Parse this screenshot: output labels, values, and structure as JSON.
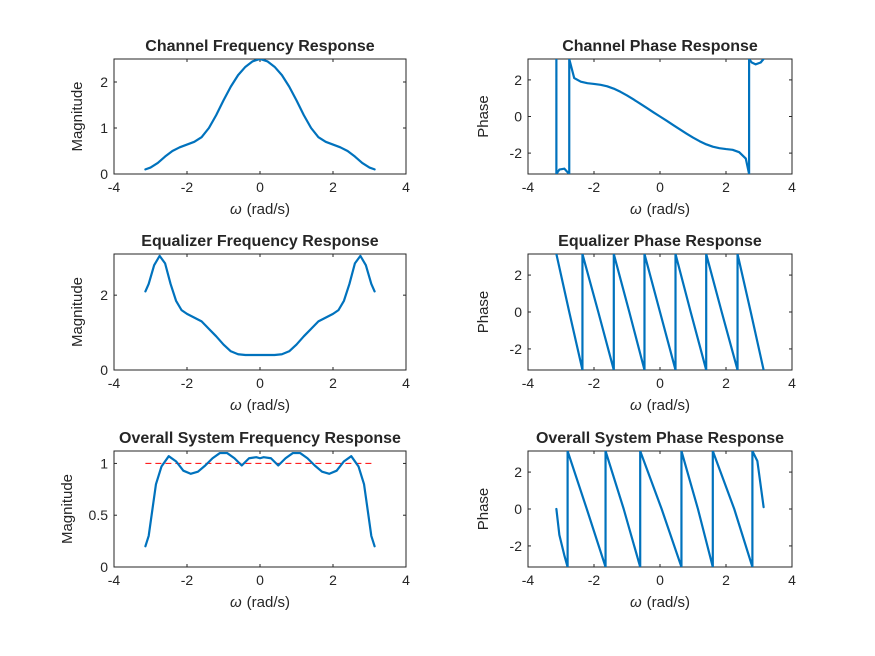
{
  "figure": {
    "background": "#ffffff",
    "line_color": "#0072BD",
    "reference_color": "#FF0000"
  },
  "chart_data": [
    {
      "type": "line",
      "title": "Channel Frequency Response",
      "xlabel": "(rad/s)",
      "xlabel_symbol": "ω",
      "ylabel": "Magnitude",
      "xlim": [
        -4,
        4
      ],
      "ylim": [
        0,
        2.5
      ],
      "xticks": [
        "-4",
        "-2",
        "0",
        "2",
        "4"
      ],
      "yticks": [
        "0",
        "1",
        "2"
      ],
      "ytick_values": [
        0,
        1,
        2
      ],
      "series": [
        {
          "values": [
            [
              -3.14,
              0.1
            ],
            [
              -3.0,
              0.14
            ],
            [
              -2.8,
              0.24
            ],
            [
              -2.6,
              0.38
            ],
            [
              -2.4,
              0.5
            ],
            [
              -2.2,
              0.58
            ],
            [
              -2.0,
              0.64
            ],
            [
              -1.8,
              0.7
            ],
            [
              -1.6,
              0.8
            ],
            [
              -1.4,
              1.0
            ],
            [
              -1.2,
              1.28
            ],
            [
              -1.0,
              1.6
            ],
            [
              -0.8,
              1.9
            ],
            [
              -0.6,
              2.15
            ],
            [
              -0.4,
              2.33
            ],
            [
              -0.2,
              2.45
            ],
            [
              0.0,
              2.5
            ],
            [
              0.2,
              2.45
            ],
            [
              0.4,
              2.33
            ],
            [
              0.6,
              2.15
            ],
            [
              0.8,
              1.9
            ],
            [
              1.0,
              1.6
            ],
            [
              1.2,
              1.28
            ],
            [
              1.4,
              1.0
            ],
            [
              1.6,
              0.8
            ],
            [
              1.8,
              0.7
            ],
            [
              2.0,
              0.64
            ],
            [
              2.2,
              0.58
            ],
            [
              2.4,
              0.5
            ],
            [
              2.6,
              0.38
            ],
            [
              2.8,
              0.24
            ],
            [
              3.0,
              0.14
            ],
            [
              3.14,
              0.1
            ]
          ]
        }
      ]
    },
    {
      "type": "line",
      "title": "Channel Phase Response",
      "xlabel": "(rad/s)",
      "xlabel_symbol": "ω",
      "ylabel": "Phase",
      "xlim": [
        -4,
        4
      ],
      "ylim": [
        -3.14159,
        3.14159
      ],
      "xticks": [
        "-4",
        "-2",
        "0",
        "2",
        "4"
      ],
      "yticks": [
        "-2",
        "0",
        "2"
      ],
      "ytick_values": [
        -2,
        0,
        2
      ],
      "series": [
        {
          "values": [
            [
              -3.14,
              3.14
            ],
            [
              -3.14,
              -3.14
            ],
            [
              -3.05,
              -2.9
            ],
            [
              -2.9,
              -2.85
            ],
            [
              -2.75,
              -3.14
            ],
            [
              -2.75,
              3.14
            ],
            [
              -2.6,
              2.1
            ],
            [
              -2.4,
              1.9
            ],
            [
              -2.2,
              1.82
            ],
            [
              -2.0,
              1.78
            ],
            [
              -1.8,
              1.73
            ],
            [
              -1.6,
              1.65
            ],
            [
              -1.4,
              1.52
            ],
            [
              -1.2,
              1.35
            ],
            [
              -1.0,
              1.15
            ],
            [
              -0.8,
              0.93
            ],
            [
              -0.6,
              0.7
            ],
            [
              -0.4,
              0.47
            ],
            [
              -0.2,
              0.23
            ],
            [
              0.0,
              0.0
            ],
            [
              0.2,
              -0.23
            ],
            [
              0.4,
              -0.47
            ],
            [
              0.6,
              -0.7
            ],
            [
              0.8,
              -0.93
            ],
            [
              1.0,
              -1.15
            ],
            [
              1.2,
              -1.35
            ],
            [
              1.4,
              -1.52
            ],
            [
              1.6,
              -1.65
            ],
            [
              1.8,
              -1.73
            ],
            [
              2.0,
              -1.78
            ],
            [
              2.2,
              -1.82
            ],
            [
              2.4,
              -1.95
            ],
            [
              2.6,
              -2.3
            ],
            [
              2.7,
              -3.14
            ],
            [
              2.7,
              3.14
            ],
            [
              2.78,
              2.95
            ],
            [
              2.9,
              2.85
            ],
            [
              3.05,
              2.95
            ],
            [
              3.14,
              3.14
            ]
          ]
        }
      ]
    },
    {
      "type": "line",
      "title": "Equalizer Frequency Response",
      "xlabel": "(rad/s)",
      "xlabel_symbol": "ω",
      "ylabel": "Magnitude",
      "xlim": [
        -4,
        4
      ],
      "ylim": [
        0,
        3.1
      ],
      "xticks": [
        "-4",
        "-2",
        "0",
        "2",
        "4"
      ],
      "yticks": [
        "0",
        "2"
      ],
      "ytick_values": [
        0,
        2
      ],
      "series": [
        {
          "values": [
            [
              -3.14,
              2.1
            ],
            [
              -3.05,
              2.3
            ],
            [
              -2.9,
              2.8
            ],
            [
              -2.75,
              3.05
            ],
            [
              -2.6,
              2.85
            ],
            [
              -2.45,
              2.3
            ],
            [
              -2.3,
              1.85
            ],
            [
              -2.15,
              1.6
            ],
            [
              -2.0,
              1.5
            ],
            [
              -1.8,
              1.4
            ],
            [
              -1.6,
              1.3
            ],
            [
              -1.4,
              1.1
            ],
            [
              -1.2,
              0.9
            ],
            [
              -1.0,
              0.68
            ],
            [
              -0.8,
              0.5
            ],
            [
              -0.6,
              0.42
            ],
            [
              -0.4,
              0.4
            ],
            [
              -0.2,
              0.4
            ],
            [
              0.0,
              0.4
            ],
            [
              0.2,
              0.4
            ],
            [
              0.4,
              0.4
            ],
            [
              0.6,
              0.42
            ],
            [
              0.8,
              0.5
            ],
            [
              1.0,
              0.68
            ],
            [
              1.2,
              0.9
            ],
            [
              1.4,
              1.1
            ],
            [
              1.6,
              1.3
            ],
            [
              1.8,
              1.4
            ],
            [
              2.0,
              1.5
            ],
            [
              2.15,
              1.6
            ],
            [
              2.3,
              1.85
            ],
            [
              2.45,
              2.3
            ],
            [
              2.6,
              2.85
            ],
            [
              2.75,
              3.05
            ],
            [
              2.9,
              2.8
            ],
            [
              3.05,
              2.3
            ],
            [
              3.14,
              2.1
            ]
          ]
        }
      ]
    },
    {
      "type": "line",
      "title": "Equalizer Phase Response",
      "xlabel": "(rad/s)",
      "xlabel_symbol": "ω",
      "ylabel": "Phase",
      "xlim": [
        -4,
        4
      ],
      "ylim": [
        -3.14159,
        3.14159
      ],
      "xticks": [
        "-4",
        "-2",
        "0",
        "2",
        "4"
      ],
      "yticks": [
        "-2",
        "0",
        "2"
      ],
      "ytick_values": [
        -2,
        0,
        2
      ],
      "series": [
        {
          "values": [
            [
              -3.14,
              3.14
            ],
            [
              -2.75,
              0.0
            ],
            [
              -2.35,
              -3.14
            ],
            [
              -2.35,
              3.14
            ],
            [
              -1.87,
              0.0
            ],
            [
              -1.4,
              -3.14
            ],
            [
              -1.4,
              3.14
            ],
            [
              -0.93,
              0.0
            ],
            [
              -0.47,
              -3.14
            ],
            [
              -0.47,
              3.14
            ],
            [
              0.0,
              0.0
            ],
            [
              0.47,
              -3.14
            ],
            [
              0.47,
              3.14
            ],
            [
              0.93,
              0.0
            ],
            [
              1.4,
              -3.14
            ],
            [
              1.4,
              3.14
            ],
            [
              1.87,
              0.0
            ],
            [
              2.35,
              -3.14
            ],
            [
              2.35,
              3.14
            ],
            [
              2.75,
              0.0
            ],
            [
              3.14,
              -3.14
            ]
          ]
        }
      ]
    },
    {
      "type": "line",
      "title": "Overall System Frequency Response",
      "xlabel": "(rad/s)",
      "xlabel_symbol": "ω",
      "ylabel": "Magnitude",
      "xlim": [
        -4,
        4
      ],
      "ylim": [
        0,
        1.12
      ],
      "xticks": [
        "-4",
        "-2",
        "0",
        "2",
        "4"
      ],
      "yticks": [
        "0",
        "0.5",
        "1"
      ],
      "ytick_values": [
        0,
        0.5,
        1
      ],
      "reference_line": {
        "y": 1,
        "x_range": [
          -3.14,
          3.14
        ]
      },
      "series": [
        {
          "values": [
            [
              -3.14,
              0.2
            ],
            [
              -3.05,
              0.3
            ],
            [
              -2.95,
              0.55
            ],
            [
              -2.85,
              0.8
            ],
            [
              -2.7,
              0.97
            ],
            [
              -2.5,
              1.07
            ],
            [
              -2.3,
              1.02
            ],
            [
              -2.1,
              0.93
            ],
            [
              -1.9,
              0.9
            ],
            [
              -1.7,
              0.92
            ],
            [
              -1.5,
              0.98
            ],
            [
              -1.3,
              1.05
            ],
            [
              -1.1,
              1.1
            ],
            [
              -0.9,
              1.1
            ],
            [
              -0.7,
              1.05
            ],
            [
              -0.5,
              0.98
            ],
            [
              -0.3,
              1.05
            ],
            [
              -0.1,
              1.06
            ],
            [
              0.0,
              1.05
            ],
            [
              0.1,
              1.06
            ],
            [
              0.3,
              1.05
            ],
            [
              0.5,
              0.98
            ],
            [
              0.7,
              1.05
            ],
            [
              0.9,
              1.1
            ],
            [
              1.1,
              1.1
            ],
            [
              1.3,
              1.05
            ],
            [
              1.5,
              0.98
            ],
            [
              1.7,
              0.92
            ],
            [
              1.9,
              0.9
            ],
            [
              2.1,
              0.93
            ],
            [
              2.3,
              1.02
            ],
            [
              2.5,
              1.07
            ],
            [
              2.7,
              0.97
            ],
            [
              2.85,
              0.8
            ],
            [
              2.95,
              0.55
            ],
            [
              3.05,
              0.3
            ],
            [
              3.14,
              0.2
            ]
          ]
        }
      ]
    },
    {
      "type": "line",
      "title": "Overall System Phase Response",
      "xlabel": "(rad/s)",
      "xlabel_symbol": "ω",
      "ylabel": "Phase",
      "xlim": [
        -4,
        4
      ],
      "ylim": [
        -3.14159,
        3.14159
      ],
      "xticks": [
        "-4",
        "-2",
        "0",
        "2",
        "4"
      ],
      "yticks": [
        "-2",
        "0",
        "2"
      ],
      "ytick_values": [
        -2,
        0,
        2
      ],
      "series": [
        {
          "values": [
            [
              -3.14,
              0.0
            ],
            [
              -3.05,
              -1.4
            ],
            [
              -2.9,
              -2.5
            ],
            [
              -2.8,
              -3.14
            ],
            [
              -2.8,
              3.14
            ],
            [
              -2.2,
              -0.1
            ],
            [
              -1.65,
              -3.14
            ],
            [
              -1.65,
              3.14
            ],
            [
              -1.1,
              0.0
            ],
            [
              -0.6,
              -3.14
            ],
            [
              -0.6,
              3.14
            ],
            [
              0.05,
              0.0
            ],
            [
              0.65,
              -3.14
            ],
            [
              0.65,
              3.14
            ],
            [
              1.15,
              0.0
            ],
            [
              1.6,
              -3.14
            ],
            [
              1.6,
              3.14
            ],
            [
              2.25,
              0.0
            ],
            [
              2.8,
              -3.14
            ],
            [
              2.8,
              3.14
            ],
            [
              2.95,
              2.6
            ],
            [
              3.14,
              0.1
            ]
          ]
        }
      ]
    }
  ]
}
